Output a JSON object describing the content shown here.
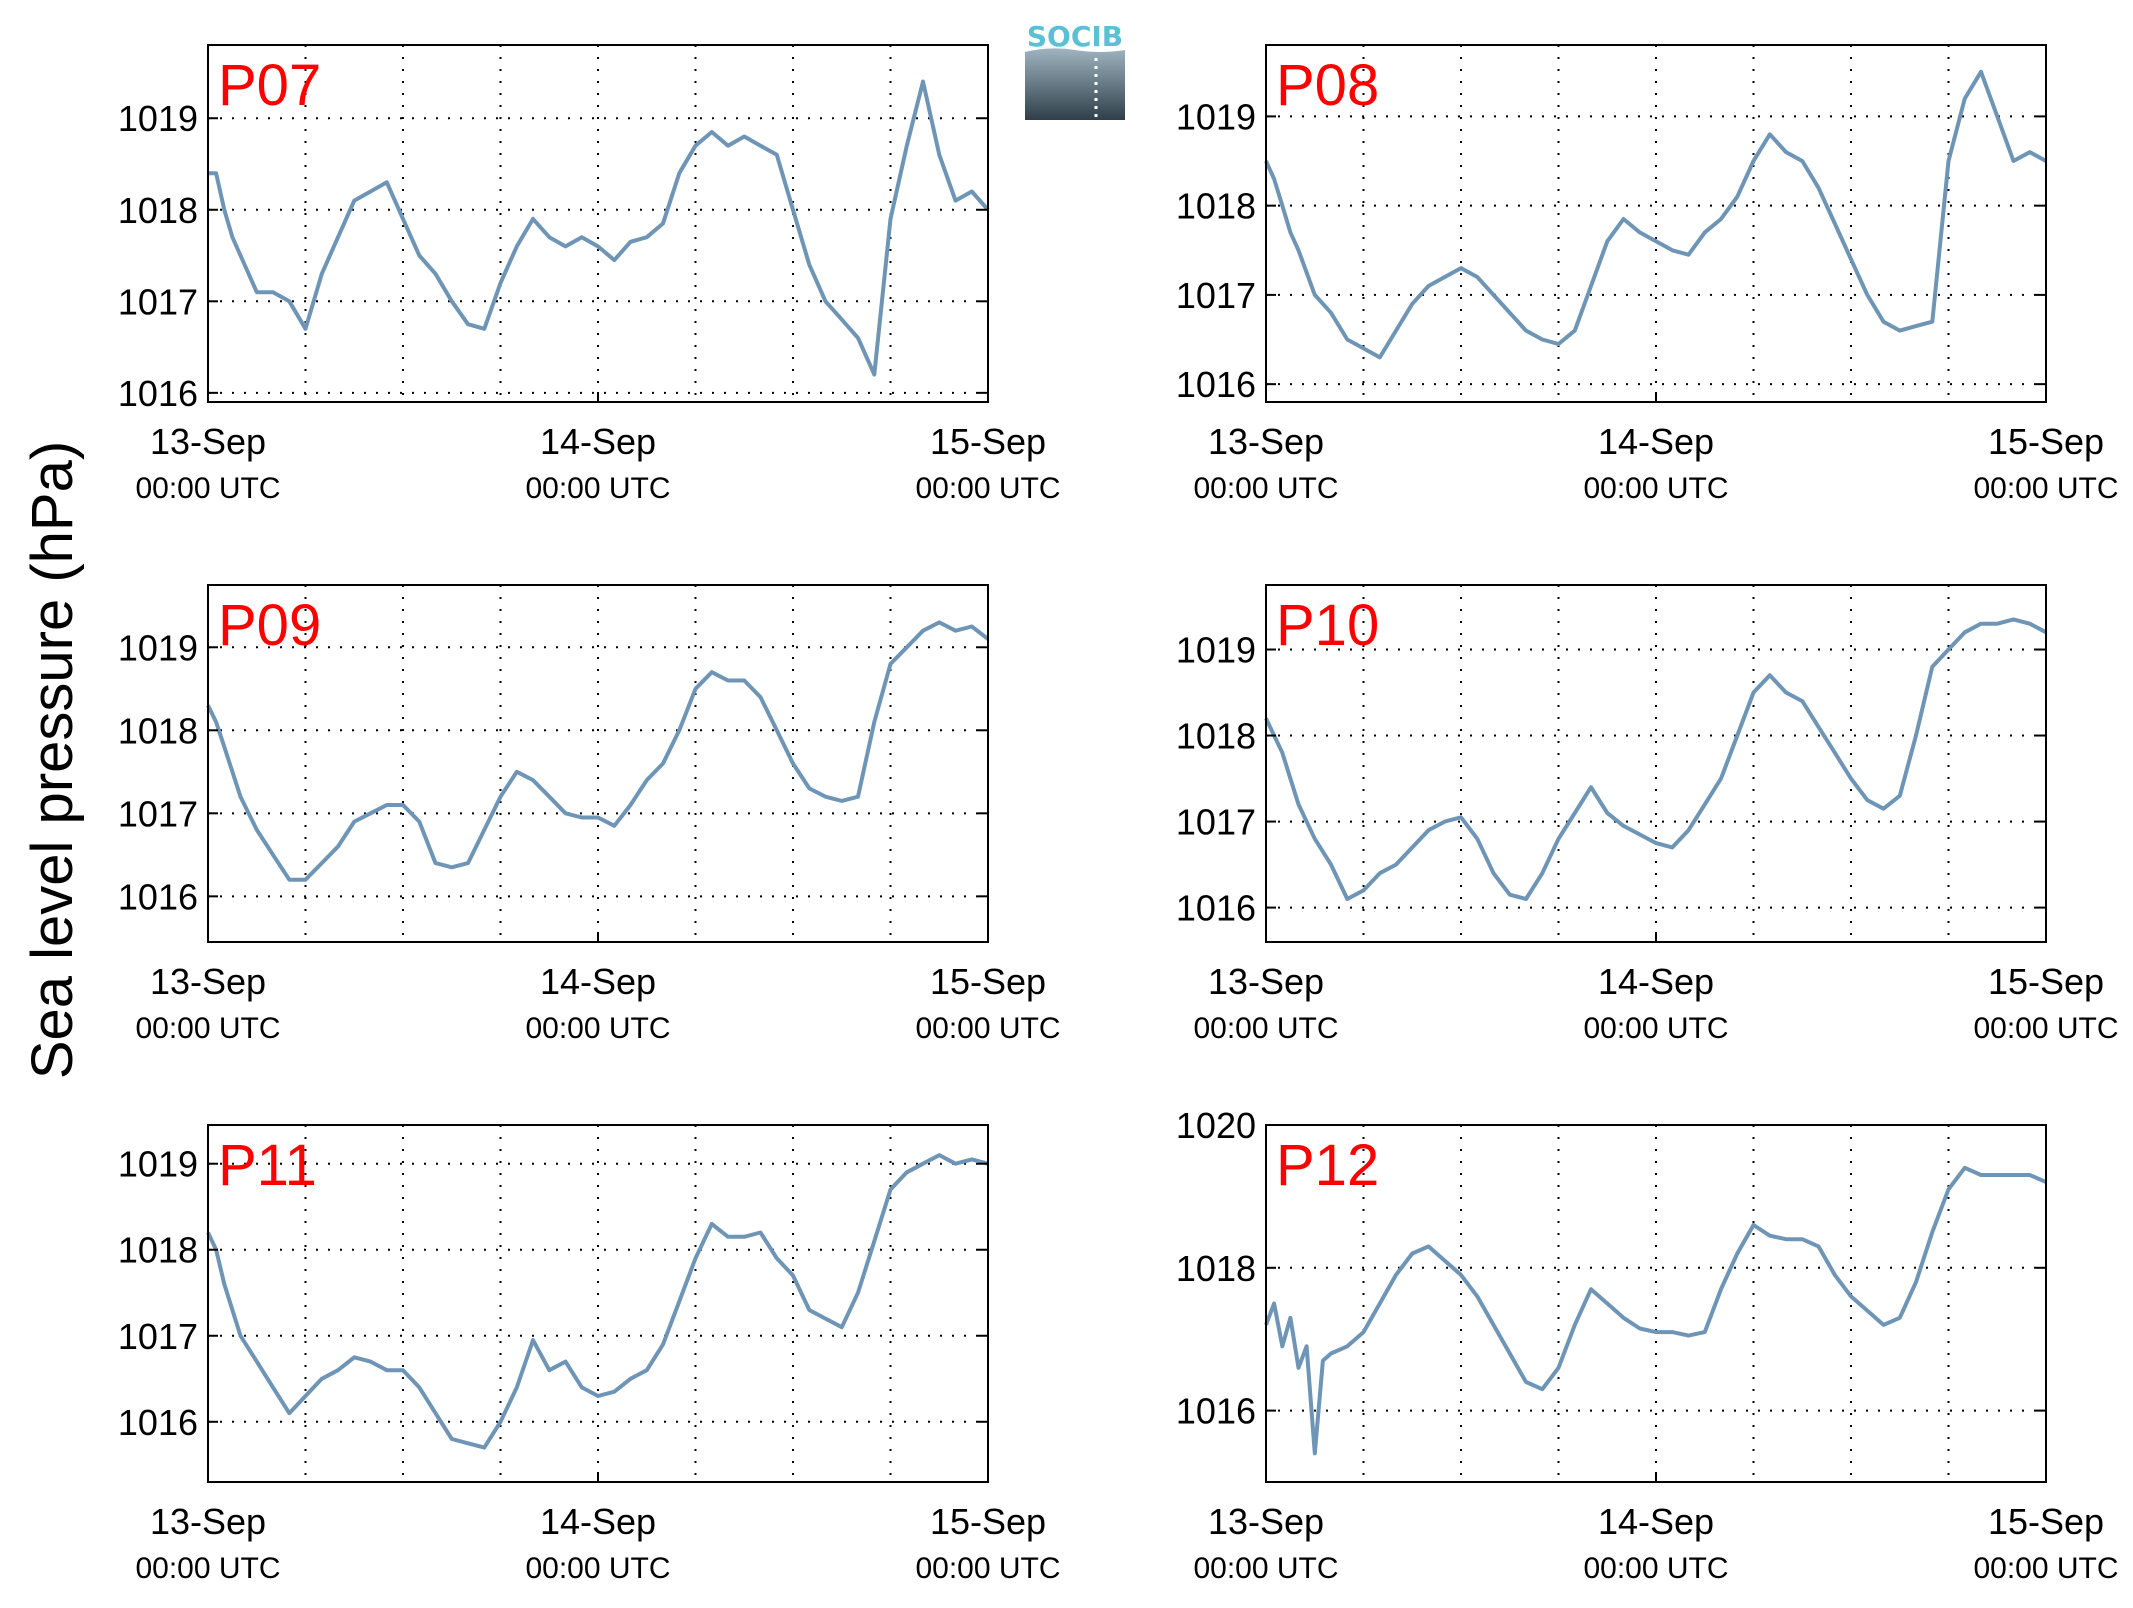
{
  "figure": {
    "ylabel": "Sea level pressure (hPa)",
    "logo": "SOCIB",
    "colors": {
      "line": "#6E95B5",
      "label": "#FF0000",
      "grid": "#000000",
      "axis": "#000000"
    }
  },
  "chart_data": [
    {
      "type": "line",
      "name": "P07",
      "title": "P07",
      "xticks": [
        {
          "top": "13-Sep",
          "bottom": "00:00 UTC",
          "hour": 0
        },
        {
          "top": "14-Sep",
          "bottom": "00:00 UTC",
          "hour": 24
        },
        {
          "top": "15-Sep",
          "bottom": "00:00 UTC",
          "hour": 48
        }
      ],
      "yticks": [
        1016,
        1017,
        1018,
        1019
      ],
      "ylim": [
        1015.9,
        1019.8
      ],
      "xlim": [
        0,
        48
      ],
      "grid": true,
      "x": [
        0,
        0.5,
        1,
        1.5,
        2,
        3,
        4,
        5,
        6,
        7,
        8,
        9,
        10,
        11,
        12,
        13,
        14,
        15,
        16,
        17,
        18,
        19,
        20,
        21,
        22,
        23,
        24,
        25,
        26,
        27,
        28,
        29,
        30,
        31,
        32,
        33,
        34,
        35,
        36,
        37,
        38,
        39,
        40,
        41,
        42,
        43,
        44,
        45,
        46,
        47,
        48
      ],
      "values": [
        1018.4,
        1018.4,
        1018,
        1017.7,
        1017.5,
        1017.1,
        1017.1,
        1017,
        1016.7,
        1017.3,
        1017.7,
        1018.1,
        1018.2,
        1018.3,
        1017.9,
        1017.5,
        1017.3,
        1017,
        1016.75,
        1016.7,
        1017.2,
        1017.6,
        1017.9,
        1017.7,
        1017.6,
        1017.7,
        1017.6,
        1017.45,
        1017.65,
        1017.7,
        1017.85,
        1018.4,
        1018.7,
        1018.85,
        1018.7,
        1018.8,
        1018.7,
        1018.6,
        1018,
        1017.4,
        1017,
        1016.8,
        1016.6,
        1016.2,
        1017.9,
        1018.7,
        1019.4,
        1018.6,
        1018.1,
        1018.2,
        1018
      ]
    },
    {
      "type": "line",
      "name": "P08",
      "title": "P08",
      "xticks": [
        {
          "top": "13-Sep",
          "bottom": "00:00 UTC",
          "hour": 0
        },
        {
          "top": "14-Sep",
          "bottom": "00:00 UTC",
          "hour": 24
        },
        {
          "top": "15-Sep",
          "bottom": "00:00 UTC",
          "hour": 48
        }
      ],
      "yticks": [
        1016,
        1017,
        1018,
        1019
      ],
      "ylim": [
        1015.8,
        1019.8
      ],
      "xlim": [
        0,
        48
      ],
      "grid": true,
      "x": [
        0,
        0.5,
        1,
        1.5,
        2,
        3,
        4,
        5,
        6,
        7,
        8,
        9,
        10,
        11,
        12,
        13,
        14,
        15,
        16,
        17,
        18,
        19,
        20,
        21,
        22,
        23,
        24,
        25,
        26,
        27,
        28,
        29,
        30,
        31,
        32,
        33,
        34,
        35,
        36,
        37,
        38,
        39,
        40,
        41,
        42,
        43,
        44,
        45,
        46,
        47,
        48
      ],
      "values": [
        1018.5,
        1018.3,
        1018,
        1017.7,
        1017.5,
        1017,
        1016.8,
        1016.5,
        1016.4,
        1016.3,
        1016.6,
        1016.9,
        1017.1,
        1017.2,
        1017.3,
        1017.2,
        1017,
        1016.8,
        1016.6,
        1016.5,
        1016.45,
        1016.6,
        1017.1,
        1017.6,
        1017.85,
        1017.7,
        1017.6,
        1017.5,
        1017.45,
        1017.7,
        1017.85,
        1018.1,
        1018.5,
        1018.8,
        1018.6,
        1018.5,
        1018.2,
        1017.8,
        1017.4,
        1017,
        1016.7,
        1016.6,
        1016.65,
        1016.7,
        1018.5,
        1019.2,
        1019.5,
        1019,
        1018.5,
        1018.6,
        1018.5
      ]
    },
    {
      "type": "line",
      "name": "P09",
      "title": "P09",
      "xticks": [
        {
          "top": "13-Sep",
          "bottom": "00:00 UTC",
          "hour": 0
        },
        {
          "top": "14-Sep",
          "bottom": "00:00 UTC",
          "hour": 24
        },
        {
          "top": "15-Sep",
          "bottom": "00:00 UTC",
          "hour": 48
        }
      ],
      "yticks": [
        1016,
        1017,
        1018,
        1019
      ],
      "ylim": [
        1015.45,
        1019.75
      ],
      "xlim": [
        0,
        48
      ],
      "grid": true,
      "x": [
        0,
        0.5,
        1,
        1.5,
        2,
        3,
        4,
        5,
        6,
        7,
        8,
        9,
        10,
        11,
        12,
        13,
        14,
        15,
        16,
        17,
        18,
        19,
        20,
        21,
        22,
        23,
        24,
        25,
        26,
        27,
        28,
        29,
        30,
        31,
        32,
        33,
        34,
        35,
        36,
        37,
        38,
        39,
        40,
        41,
        42,
        43,
        44,
        45,
        46,
        47,
        48
      ],
      "values": [
        1018.3,
        1018.1,
        1017.8,
        1017.5,
        1017.2,
        1016.8,
        1016.5,
        1016.2,
        1016.2,
        1016.4,
        1016.6,
        1016.9,
        1017,
        1017.1,
        1017.1,
        1016.9,
        1016.4,
        1016.35,
        1016.4,
        1016.8,
        1017.2,
        1017.5,
        1017.4,
        1017.2,
        1017,
        1016.95,
        1016.95,
        1016.85,
        1017.1,
        1017.4,
        1017.6,
        1018,
        1018.5,
        1018.7,
        1018.6,
        1018.6,
        1018.4,
        1018,
        1017.6,
        1017.3,
        1017.2,
        1017.15,
        1017.2,
        1018.1,
        1018.8,
        1019,
        1019.2,
        1019.3,
        1019.2,
        1019.25,
        1019.1
      ]
    },
    {
      "type": "line",
      "name": "P10",
      "title": "P10",
      "xticks": [
        {
          "top": "13-Sep",
          "bottom": "00:00 UTC",
          "hour": 0
        },
        {
          "top": "14-Sep",
          "bottom": "00:00 UTC",
          "hour": 24
        },
        {
          "top": "15-Sep",
          "bottom": "00:00 UTC",
          "hour": 48
        }
      ],
      "yticks": [
        1016,
        1017,
        1018,
        1019
      ],
      "ylim": [
        1015.6,
        1019.75
      ],
      "xlim": [
        0,
        48
      ],
      "grid": true,
      "x": [
        0,
        0.5,
        1,
        1.5,
        2,
        3,
        4,
        5,
        6,
        7,
        8,
        9,
        10,
        11,
        12,
        13,
        14,
        15,
        16,
        17,
        18,
        19,
        20,
        21,
        22,
        23,
        24,
        25,
        26,
        27,
        28,
        29,
        30,
        31,
        32,
        33,
        34,
        35,
        36,
        37,
        38,
        39,
        40,
        41,
        42,
        43,
        44,
        45,
        46,
        47,
        48
      ],
      "values": [
        1018.2,
        1018,
        1017.8,
        1017.5,
        1017.2,
        1016.8,
        1016.5,
        1016.1,
        1016.2,
        1016.4,
        1016.5,
        1016.7,
        1016.9,
        1017,
        1017.05,
        1016.8,
        1016.4,
        1016.15,
        1016.1,
        1016.4,
        1016.8,
        1017.1,
        1017.4,
        1017.1,
        1016.95,
        1016.85,
        1016.75,
        1016.7,
        1016.9,
        1017.2,
        1017.5,
        1018,
        1018.5,
        1018.7,
        1018.5,
        1018.4,
        1018.1,
        1017.8,
        1017.5,
        1017.25,
        1017.15,
        1017.3,
        1018,
        1018.8,
        1019,
        1019.2,
        1019.3,
        1019.3,
        1019.35,
        1019.3,
        1019.2
      ]
    },
    {
      "type": "line",
      "name": "P11",
      "title": "P11",
      "xticks": [
        {
          "top": "13-Sep",
          "bottom": "00:00 UTC",
          "hour": 0
        },
        {
          "top": "14-Sep",
          "bottom": "00:00 UTC",
          "hour": 24
        },
        {
          "top": "15-Sep",
          "bottom": "00:00 UTC",
          "hour": 48
        }
      ],
      "yticks": [
        1016,
        1017,
        1018,
        1019
      ],
      "ylim": [
        1015.3,
        1019.45
      ],
      "xlim": [
        0,
        48
      ],
      "grid": true,
      "x": [
        0,
        0.5,
        1,
        1.5,
        2,
        3,
        4,
        5,
        6,
        7,
        8,
        9,
        10,
        11,
        12,
        13,
        14,
        15,
        16,
        17,
        18,
        19,
        20,
        21,
        22,
        23,
        24,
        25,
        26,
        27,
        28,
        29,
        30,
        31,
        32,
        33,
        34,
        35,
        36,
        37,
        38,
        39,
        40,
        41,
        42,
        43,
        44,
        45,
        46,
        47,
        48
      ],
      "values": [
        1018.2,
        1018,
        1017.6,
        1017.3,
        1017,
        1016.7,
        1016.4,
        1016.1,
        1016.3,
        1016.5,
        1016.6,
        1016.75,
        1016.7,
        1016.6,
        1016.6,
        1016.4,
        1016.1,
        1015.8,
        1015.75,
        1015.7,
        1016,
        1016.4,
        1016.95,
        1016.6,
        1016.7,
        1016.4,
        1016.3,
        1016.35,
        1016.5,
        1016.6,
        1016.9,
        1017.4,
        1017.9,
        1018.3,
        1018.15,
        1018.15,
        1018.2,
        1017.9,
        1017.7,
        1017.3,
        1017.2,
        1017.1,
        1017.5,
        1018.1,
        1018.7,
        1018.9,
        1019,
        1019.1,
        1019,
        1019.05,
        1019
      ]
    },
    {
      "type": "line",
      "name": "P12",
      "title": "P12",
      "xticks": [
        {
          "top": "13-Sep",
          "bottom": "00:00 UTC",
          "hour": 0
        },
        {
          "top": "14-Sep",
          "bottom": "00:00 UTC",
          "hour": 24
        },
        {
          "top": "15-Sep",
          "bottom": "00:00 UTC",
          "hour": 48
        }
      ],
      "yticks": [
        1016,
        1018,
        1020
      ],
      "ylim": [
        1015,
        1020
      ],
      "xlim": [
        0,
        48
      ],
      "grid": true,
      "x": [
        0,
        0.5,
        1,
        1.5,
        2,
        2.5,
        3,
        3.5,
        4,
        5,
        6,
        7,
        8,
        9,
        10,
        11,
        12,
        13,
        14,
        15,
        16,
        17,
        18,
        19,
        20,
        21,
        22,
        23,
        24,
        25,
        26,
        27,
        28,
        29,
        30,
        31,
        32,
        33,
        34,
        35,
        36,
        37,
        38,
        39,
        40,
        41,
        42,
        43,
        44,
        45,
        46,
        47,
        48
      ],
      "values": [
        1017.2,
        1017.5,
        1016.9,
        1017.3,
        1016.6,
        1016.9,
        1015.4,
        1016.7,
        1016.8,
        1016.9,
        1017.1,
        1017.5,
        1017.9,
        1018.2,
        1018.3,
        1018.1,
        1017.9,
        1017.6,
        1017.2,
        1016.8,
        1016.4,
        1016.3,
        1016.6,
        1017.2,
        1017.7,
        1017.5,
        1017.3,
        1017.15,
        1017.1,
        1017.1,
        1017.05,
        1017.1,
        1017.7,
        1018.2,
        1018.6,
        1018.45,
        1018.4,
        1018.4,
        1018.3,
        1017.9,
        1017.6,
        1017.4,
        1017.2,
        1017.3,
        1017.8,
        1018.5,
        1019.1,
        1019.4,
        1019.3,
        1019.3,
        1019.3,
        1019.3,
        1019.2
      ]
    }
  ]
}
